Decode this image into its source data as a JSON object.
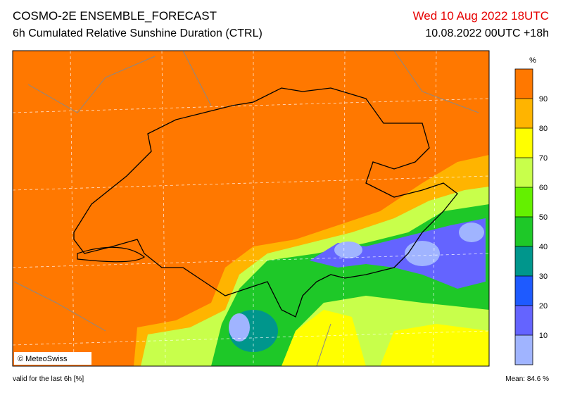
{
  "header": {
    "title": "COSMO-2E ENSEMBLE_FORECAST",
    "subtitle": "6h Cumulated Relative Sunshine Duration (CTRL)",
    "valid_time": "Wed 10 Aug 2022 18UTC",
    "run": "10.08.2022 00UTC +18h"
  },
  "colorbar": {
    "unit": "%",
    "ticks": [
      10,
      20,
      30,
      40,
      50,
      60,
      70,
      80,
      90
    ],
    "colors": [
      "#a0b4ff",
      "#6464ff",
      "#1e5aff",
      "#00968c",
      "#1ec828",
      "#64f000",
      "#c8ff4b",
      "#ffff00",
      "#ffb400",
      "#ff7800"
    ]
  },
  "map": {
    "credit": "© MeteoSwiss"
  },
  "footer": {
    "validity": "valid for the last 6h [%]",
    "mean": "Mean:  84.6 %"
  }
}
